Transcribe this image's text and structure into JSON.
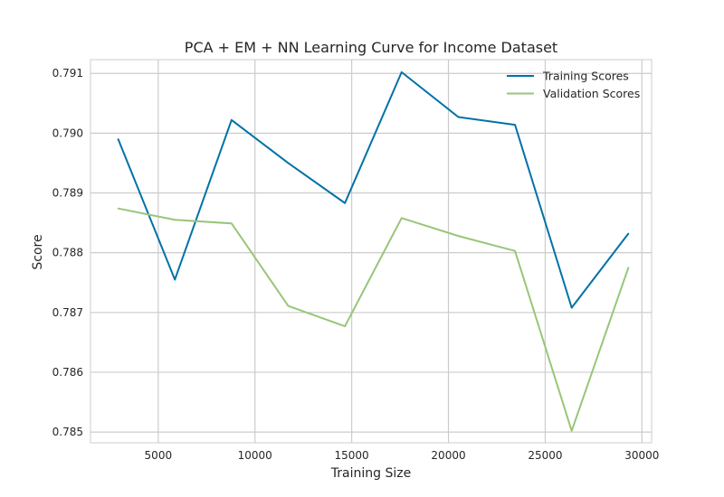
{
  "chart_data": {
    "type": "line",
    "title": "PCA + EM + NN Learning Curve for Income Dataset",
    "xlabel": "Training Size",
    "ylabel": "Score",
    "xlim": [
      1500,
      30500
    ],
    "ylim": [
      0.78482,
      0.79123
    ],
    "xticks": [
      5000,
      10000,
      15000,
      20000,
      25000,
      30000
    ],
    "yticks": [
      0.785,
      0.786,
      0.787,
      0.788,
      0.789,
      0.79,
      0.791
    ],
    "grid": true,
    "legend_position": "top-right",
    "x": [
      2930,
      5860,
      8790,
      11720,
      14650,
      17580,
      20510,
      23440,
      26370,
      29300
    ],
    "series": [
      {
        "name": "Training Scores",
        "color": "#0072a8",
        "values": [
          0.7899,
          0.78755,
          0.79022,
          0.7895,
          0.78883,
          0.79102,
          0.79027,
          0.79014,
          0.78708,
          0.78832
        ]
      },
      {
        "name": "Validation Scores",
        "color": "#99c57a",
        "values": [
          0.78874,
          0.78855,
          0.78849,
          0.78711,
          0.78677,
          0.78858,
          0.78828,
          0.78803,
          0.78502,
          0.78775
        ]
      }
    ]
  }
}
